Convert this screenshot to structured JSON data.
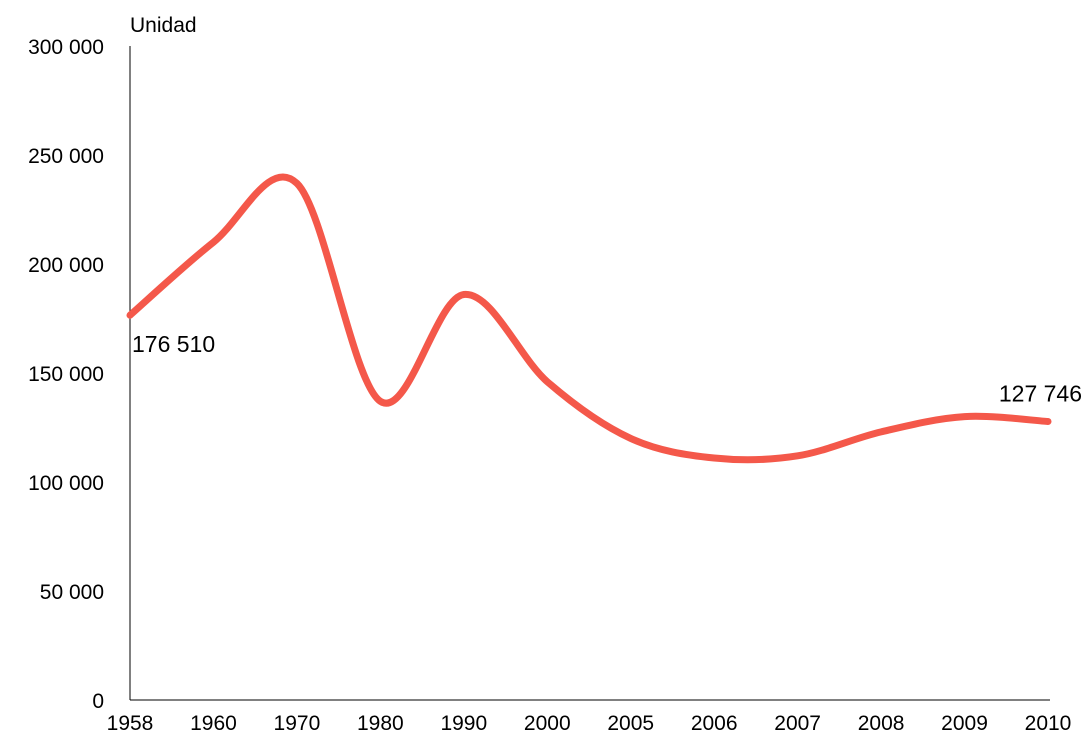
{
  "chart_data": {
    "type": "line",
    "title": "",
    "xlabel": "",
    "ylabel": "Unidad",
    "ylim": [
      0,
      300000
    ],
    "y_ticks": [
      0,
      50000,
      100000,
      150000,
      200000,
      250000,
      300000
    ],
    "y_tick_labels": [
      "0",
      "50 000",
      "100 000",
      "150 000",
      "200 000",
      "250 000",
      "300 000"
    ],
    "categories": [
      "1958",
      "1960",
      "1970",
      "1980",
      "1990",
      "2000",
      "2005",
      "2006",
      "2007",
      "2008",
      "2009",
      "2010"
    ],
    "grid": false,
    "legend": "none",
    "series": [
      {
        "color": "#f4584a",
        "values": [
          176510,
          210000,
          237000,
          137000,
          186000,
          146000,
          120000,
          111000,
          112000,
          123000,
          130000,
          127746
        ]
      }
    ],
    "annotations": [
      {
        "category": "1958",
        "text": "176 510"
      },
      {
        "category": "2010",
        "text": "127 746"
      }
    ]
  }
}
